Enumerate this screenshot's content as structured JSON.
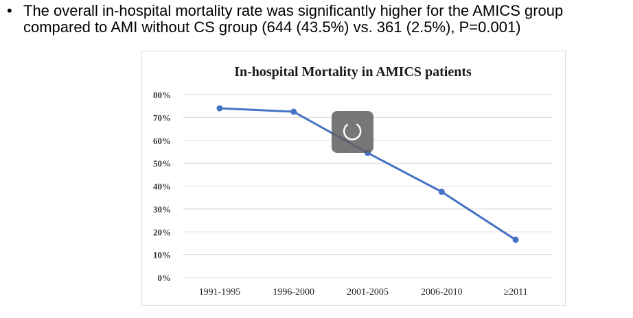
{
  "slide": {
    "bullet_symbol": "•",
    "bullet_line1": "The overall in-hospital mortality rate was significantly higher for the AMICS group",
    "bullet_line2": "compared to AMI without CS group (644 (43.5%)  vs. 361 (2.5%), P=0.001)"
  },
  "loader": {
    "icon": "loading-spinner-icon"
  },
  "colors": {
    "series": "#4472c4",
    "grid": "#d9d9d9",
    "loader_bg": "#5f5f5f"
  },
  "chart_data": {
    "type": "line",
    "title": "In-hospital Mortality in AMICS patients",
    "xlabel": "",
    "ylabel": "",
    "categories": [
      "1991-1995",
      "1996-2000",
      "2001-2005",
      "2006-2010",
      "≥2011"
    ],
    "series": [
      {
        "values": [
          74,
          72.5,
          54.5,
          37.5,
          16.5
        ]
      }
    ],
    "ylim": [
      0,
      80
    ],
    "yticks": [
      "0%",
      "10%",
      "20%",
      "30%",
      "40%",
      "50%",
      "60%",
      "70%",
      "80%"
    ],
    "grid": true,
    "legend": "none"
  }
}
